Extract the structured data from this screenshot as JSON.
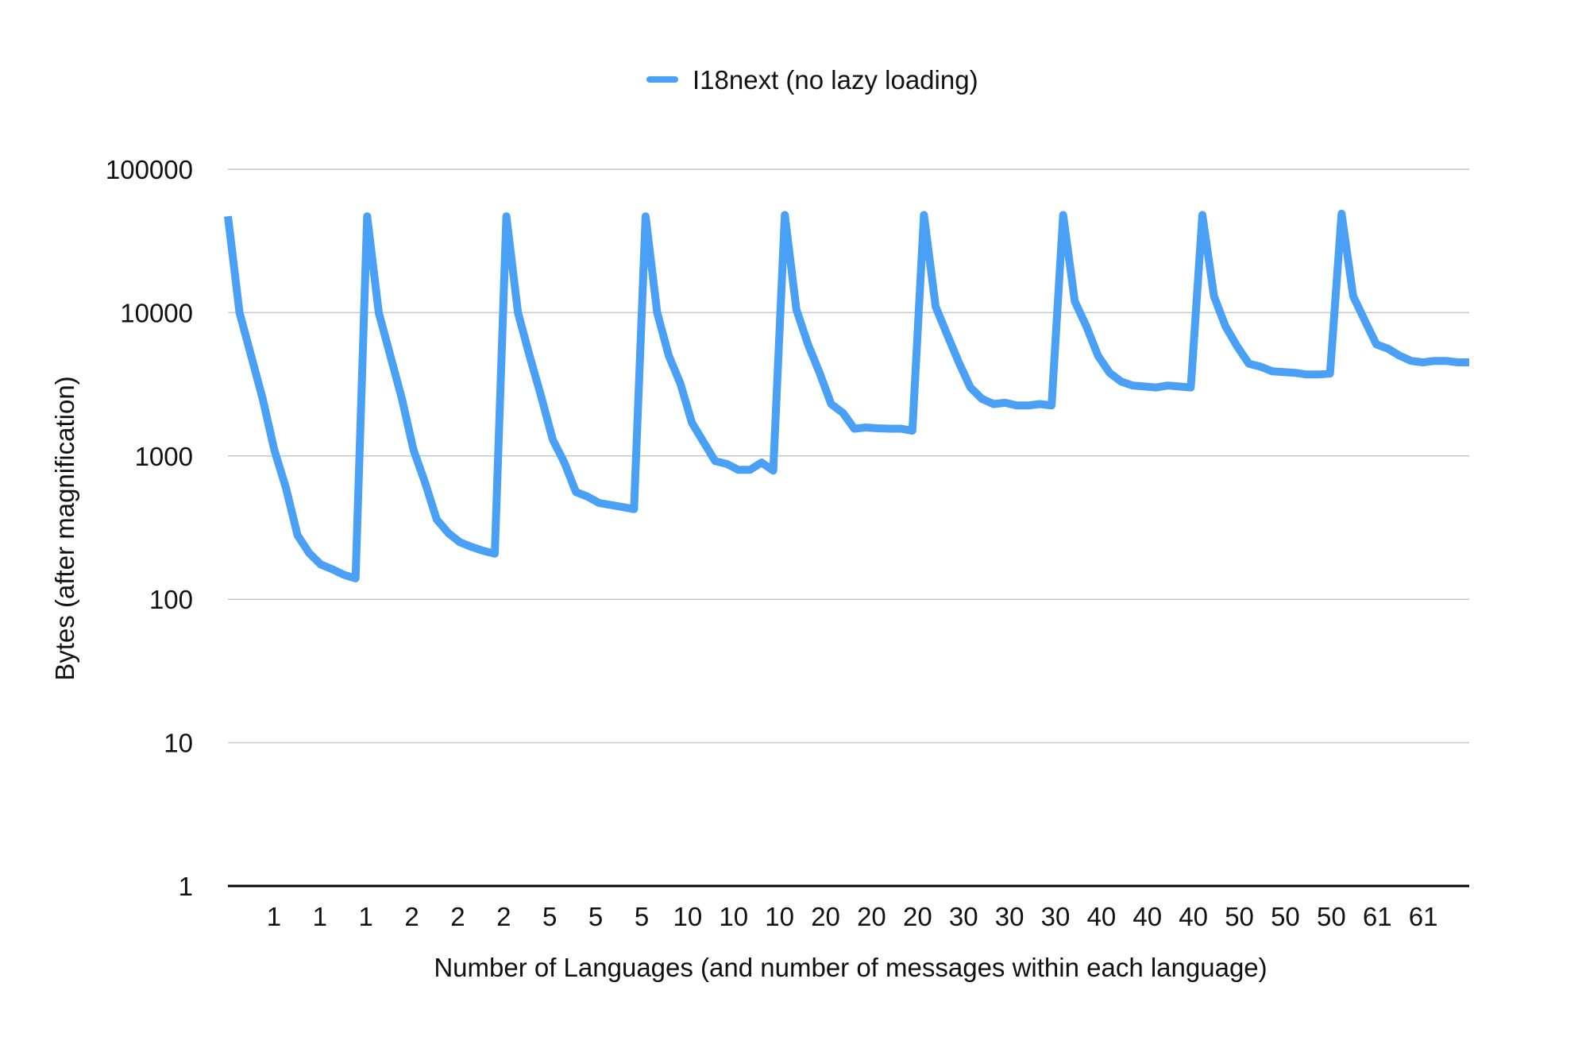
{
  "chart_data": {
    "type": "line",
    "title": "",
    "xlabel": "Number of Languages (and number of messages within each language)",
    "ylabel": "Bytes (after magnification)",
    "y_scale": "log",
    "ylim": [
      1,
      100000
    ],
    "y_ticks": [
      "1",
      "10",
      "100",
      "1000",
      "10000",
      "100000"
    ],
    "grid": true,
    "legend_position": "top-center",
    "x_tick_labels": [
      "1",
      "1",
      "1",
      "2",
      "2",
      "2",
      "5",
      "5",
      "5",
      "10",
      "10",
      "10",
      "20",
      "20",
      "20",
      "30",
      "30",
      "30",
      "40",
      "40",
      "40",
      "50",
      "50",
      "50",
      "61",
      "61"
    ],
    "series": [
      {
        "name": "I18next (no lazy loading)",
        "color": "#4aa0f5",
        "values": [
          47000,
          10000,
          5000,
          2500,
          1100,
          600,
          280,
          210,
          175,
          162,
          148,
          140,
          47000,
          10000,
          5000,
          2500,
          1100,
          650,
          360,
          290,
          250,
          232,
          218,
          208,
          47000,
          10000,
          5000,
          2600,
          1300,
          900,
          560,
          520,
          470,
          455,
          440,
          425,
          47000,
          10000,
          5000,
          3200,
          1700,
          1250,
          920,
          880,
          800,
          800,
          900,
          790,
          48000,
          10500,
          6000,
          3800,
          2300,
          2000,
          1550,
          1580,
          1560,
          1550,
          1550,
          1500,
          48000,
          11000,
          7000,
          4500,
          3000,
          2500,
          2300,
          2350,
          2250,
          2250,
          2300,
          2250,
          48000,
          12000,
          8000,
          5000,
          3800,
          3300,
          3100,
          3050,
          3000,
          3100,
          3050,
          3000,
          48000,
          13000,
          8000,
          5800,
          4400,
          4200,
          3900,
          3850,
          3800,
          3700,
          3700,
          3750,
          49000,
          13000,
          8800,
          6000,
          5600,
          5000,
          4600,
          4500,
          4600,
          4600,
          4500,
          4500
        ]
      }
    ]
  }
}
